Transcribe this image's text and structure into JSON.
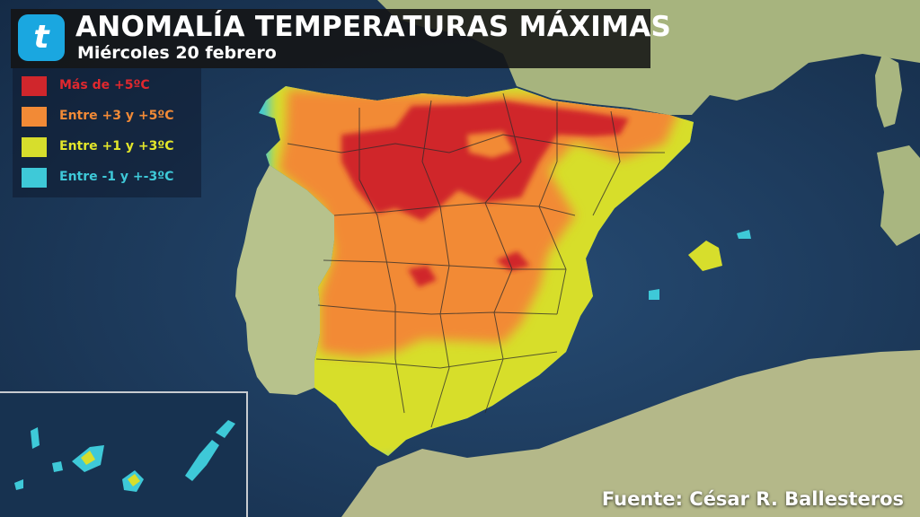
{
  "header": {
    "title": "ANOMALÍA TEMPERATURAS MÁXIMAS",
    "subtitle": "Miércoles 20 febrero"
  },
  "logo": {
    "glyph": "t",
    "icon": "tiempo-logo-icon",
    "color": "#1aa7e0"
  },
  "legend": {
    "items": [
      {
        "label": "Más de +5ºC",
        "color": "#d0262c",
        "text_color": "#e0282e"
      },
      {
        "label": "Entre +3 y +5ºC",
        "color": "#f28a36",
        "text_color": "#f28a36"
      },
      {
        "label": "Entre +1 y +3ºC",
        "color": "#d7de2c",
        "text_color": "#e3e62a"
      },
      {
        "label": "Entre -1 y +-3ºC",
        "color": "#3ec9d8",
        "text_color": "#3ec9d8"
      }
    ]
  },
  "source": "Fuente: César R. Ballesteros",
  "colors": {
    "sea": "#1d3a5c",
    "land": "#b8c48e",
    "hot": "#d0262c",
    "warm": "#f28a36",
    "mild": "#d7de2c",
    "cool": "#3ec9d8"
  }
}
